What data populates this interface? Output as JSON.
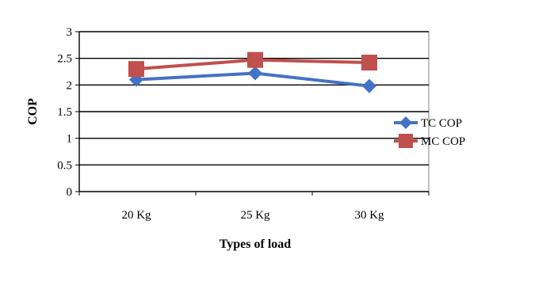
{
  "chart_data": {
    "type": "line",
    "categories": [
      "20 Kg",
      "25 Kg",
      "30 Kg"
    ],
    "series": [
      {
        "name": "TC COP",
        "values": [
          2.1,
          2.22,
          1.98
        ],
        "color": "#4472C4",
        "marker": "diamond"
      },
      {
        "name": "MC COP",
        "values": [
          2.3,
          2.47,
          2.42
        ],
        "color": "#C0504D",
        "marker": "square"
      }
    ],
    "xlabel": "Types of load",
    "ylabel": "COP",
    "ylim": [
      0,
      3
    ],
    "yticks": [
      "0",
      "0.5",
      "1",
      "1.5",
      "2",
      "2.5",
      "3"
    ],
    "grid": true,
    "legend_position": "right"
  }
}
